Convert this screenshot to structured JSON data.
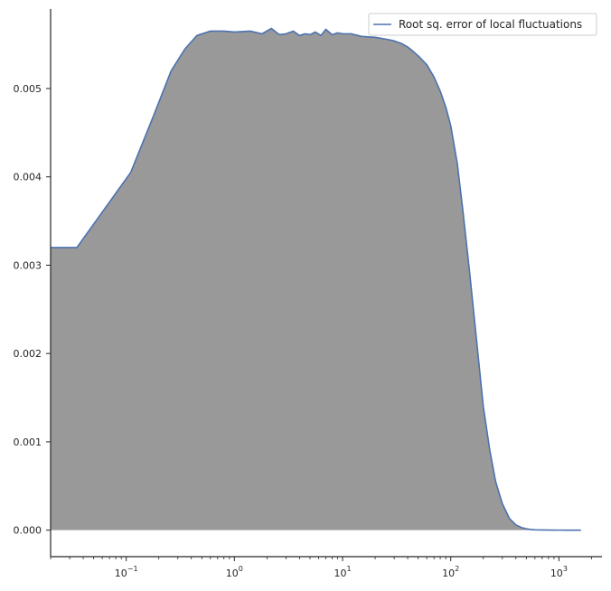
{
  "chart_data": {
    "type": "area",
    "title": "",
    "xlabel": "",
    "ylabel": "",
    "x_scale": "log",
    "xlim": [
      0.02,
      2500
    ],
    "ylim": [
      -0.0003,
      0.0059
    ],
    "grid": false,
    "legend_position": "top-right",
    "series": [
      {
        "name": "Root sq. error of local fluctuations",
        "color": "#4c72b0",
        "fill_color": "#999999",
        "x": [
          0.02,
          0.035,
          0.11,
          0.18,
          0.26,
          0.35,
          0.45,
          0.6,
          0.8,
          1.0,
          1.4,
          1.8,
          2.2,
          2.6,
          3.0,
          3.5,
          4.0,
          4.5,
          5.0,
          5.6,
          6.3,
          7.0,
          8.0,
          9.0,
          10.0,
          12.0,
          15.0,
          20.0,
          25.0,
          30.0,
          35.0,
          40.0,
          45.0,
          50.0,
          60.0,
          70.0,
          80.0,
          90.0,
          100.0,
          115.0,
          130.0,
          150.0,
          175.0,
          200.0,
          230.0,
          260.0,
          300.0,
          350.0,
          400.0,
          450.0,
          500.0,
          550.0,
          600.0,
          700.0,
          800.0,
          1000.0,
          1200.0,
          1600.0
        ],
        "y": [
          0.0032,
          0.0032,
          0.00405,
          0.0047,
          0.0052,
          0.00545,
          0.0056,
          0.00565,
          0.00565,
          0.00564,
          0.00565,
          0.00562,
          0.00568,
          0.00561,
          0.00562,
          0.00565,
          0.0056,
          0.00562,
          0.00561,
          0.00564,
          0.0056,
          0.00567,
          0.00561,
          0.00563,
          0.00562,
          0.00562,
          0.00559,
          0.00558,
          0.00556,
          0.00554,
          0.00551,
          0.00547,
          0.00542,
          0.00537,
          0.00527,
          0.00513,
          0.00497,
          0.00479,
          0.00458,
          0.00415,
          0.0036,
          0.0029,
          0.0021,
          0.0014,
          0.0009,
          0.00055,
          0.0003,
          0.00013,
          6e-05,
          3e-05,
          1.5e-05,
          8e-06,
          4e-06,
          2e-06,
          1e-06,
          5e-07,
          0.0,
          0.0
        ]
      }
    ],
    "y_ticks": [
      0.0,
      0.001,
      0.002,
      0.003,
      0.004,
      0.005
    ],
    "y_tick_labels": [
      "0.000",
      "0.001",
      "0.002",
      "0.003",
      "0.004",
      "0.005"
    ],
    "x_ticks": [
      0.1,
      1,
      10,
      100,
      1000
    ],
    "x_tick_bases": [
      "10",
      "10",
      "10",
      "10",
      "10"
    ],
    "x_tick_exponents": [
      "−1",
      "0",
      "1",
      "2",
      "3"
    ]
  }
}
